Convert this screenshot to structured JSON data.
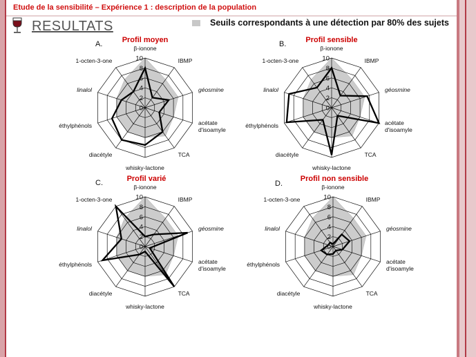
{
  "header": {
    "topic": "Etude de la sensibilité – Expérience 1 : description de la population",
    "section": "RESULTATS",
    "legend": "Seuils correspondants à une détection par 80% des sujets"
  },
  "icons": {
    "section": "wine-glass-icon"
  },
  "colors": {
    "topic": "#d01010",
    "profile_title": "#cc0000",
    "threshold_area": "#cccccc",
    "profile_line": "#000000"
  },
  "chart_data": [
    {
      "type": "radar",
      "panel": "A.",
      "title": "Profil moyen",
      "axes": [
        "β-ionone",
        "IBMP",
        "géosmine",
        "acétate d'isoamyle",
        "TCA",
        "whisky-lactone",
        "diacétyle",
        "éthylphénols",
        "linalol",
        "1-octen-3-one"
      ],
      "ticks": [
        0,
        2,
        4,
        6,
        8,
        10
      ],
      "rmax": 10,
      "series": [
        {
          "role": "threshold area",
          "values": [
            10,
            7,
            7,
            6,
            7,
            6,
            6,
            6,
            6,
            7
          ]
        },
        {
          "role": "profile line",
          "values": [
            8,
            2.5,
            5,
            3,
            6,
            7.5,
            8,
            7,
            5,
            4
          ]
        }
      ]
    },
    {
      "type": "radar",
      "panel": "B.",
      "title": "Profil sensible",
      "axes": [
        "β-ionone",
        "IBMP",
        "géosmine",
        "acétate d'isoamyle",
        "TCA",
        "whisky-lactone",
        "diacétyle",
        "éthylphénols",
        "linalol",
        "1-octen-3-one"
      ],
      "ticks": [
        0,
        2,
        4,
        6,
        8,
        10
      ],
      "rmax": 10,
      "series": [
        {
          "role": "threshold area",
          "values": [
            10,
            7,
            7,
            6,
            7,
            6,
            6,
            6,
            6,
            7
          ]
        },
        {
          "role": "profile line",
          "values": [
            8,
            3,
            7.5,
            10,
            2,
            9.5,
            3,
            9.5,
            9,
            5
          ]
        }
      ]
    },
    {
      "type": "radar",
      "panel": "C.",
      "title": "Profil varié",
      "axes": [
        "β-ionone",
        "IBMP",
        "géosmine",
        "acétate d'isoamyle",
        "TCA",
        "whisky-lactone",
        "diacétyle",
        "éthylphénols",
        "linalol",
        "1-octen-3-one"
      ],
      "ticks": [
        0,
        2,
        4,
        6,
        8,
        10
      ],
      "rmax": 10,
      "series": [
        {
          "role": "threshold area",
          "values": [
            10,
            7,
            7,
            6,
            7,
            6,
            6,
            6,
            6,
            7
          ]
        },
        {
          "role": "profile line",
          "values": [
            2,
            3,
            9,
            1,
            10,
            1,
            2,
            9,
            5,
            10
          ]
        }
      ]
    },
    {
      "type": "radar",
      "panel": "D.",
      "title": "Profil non sensible",
      "axes": [
        "β-ionone",
        "IBMP",
        "géosmine",
        "acétate d'isoamyle",
        "TCA",
        "whisky-lactone",
        "diacétyle",
        "éthylphénols",
        "linalol",
        "1-octen-3-one"
      ],
      "ticks": [
        0,
        2,
        4,
        6,
        8,
        10
      ],
      "rmax": 10,
      "series": [
        {
          "role": "threshold area",
          "values": [
            10,
            7,
            7,
            6,
            7,
            6,
            6,
            6,
            6,
            7
          ]
        },
        {
          "role": "profile line",
          "values": [
            0.5,
            3,
            3.5,
            2,
            1,
            1.5,
            2,
            2.5,
            1,
            1
          ]
        }
      ]
    }
  ]
}
